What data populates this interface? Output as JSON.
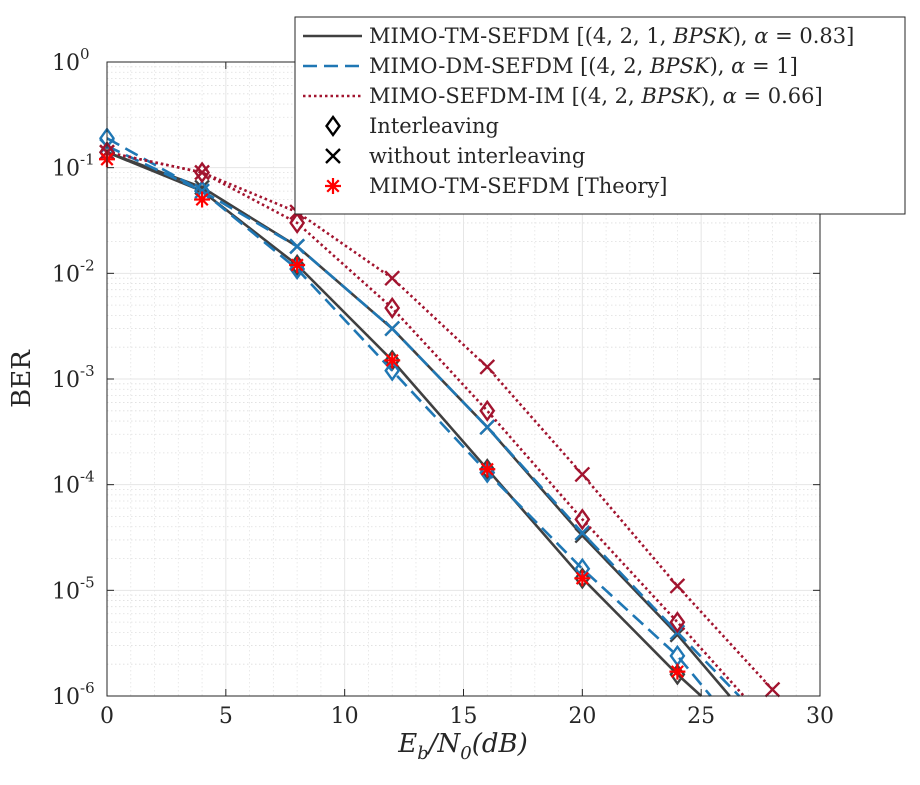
{
  "chart_data": {
    "type": "line",
    "title": "",
    "xlabel": "E_b/N_0(dB)",
    "xlabel_parts": {
      "base": "E",
      "sub1": "b",
      "slash": "/N",
      "sub2": "0",
      "tail": "(dB)"
    },
    "ylabel": "BER",
    "xlim": [
      0,
      30
    ],
    "ylim": [
      1e-06,
      1
    ],
    "yscale": "log",
    "grid": true,
    "legend_position": "top-right",
    "x_ticks": [
      "0",
      "5",
      "10",
      "15",
      "20",
      "25",
      "30"
    ],
    "y_ticks": [
      {
        "base": "10",
        "exp": "0"
      },
      {
        "base": "10",
        "exp": "-1"
      },
      {
        "base": "10",
        "exp": "-2"
      },
      {
        "base": "10",
        "exp": "-3"
      },
      {
        "base": "10",
        "exp": "-4"
      },
      {
        "base": "10",
        "exp": "-5"
      },
      {
        "base": "10",
        "exp": "-6"
      }
    ],
    "series": [
      {
        "name": "TM interleaving",
        "color": "#404040",
        "dash": "solid",
        "marker": "diamond",
        "x": [
          0,
          4,
          8,
          12,
          16,
          20,
          24,
          25
        ],
        "y": [
          0.14,
          0.06,
          0.012,
          0.0015,
          0.00014,
          1.3e-05,
          1.6e-06,
          1e-06
        ]
      },
      {
        "name": "TM without interleaving",
        "color": "#404040",
        "dash": "solid",
        "marker": "x",
        "x": [
          0,
          4,
          8,
          12,
          16,
          20,
          24,
          26.2
        ],
        "y": [
          0.14,
          0.065,
          0.018,
          0.003,
          0.00035,
          3.3e-05,
          3.8e-06,
          1e-06
        ]
      },
      {
        "name": "DM interleaving",
        "color": "#1f77b4",
        "dash": "dashed",
        "marker": "diamond",
        "x": [
          0,
          4,
          8,
          12,
          16,
          20,
          24,
          25.4
        ],
        "y": [
          0.19,
          0.06,
          0.011,
          0.0012,
          0.00013,
          1.6e-05,
          2.4e-06,
          1e-06
        ]
      },
      {
        "name": "DM without interleaving",
        "color": "#1f77b4",
        "dash": "dashed",
        "marker": "x",
        "x": [
          0,
          4,
          8,
          12,
          16,
          20,
          24,
          26.6
        ],
        "y": [
          0.16,
          0.06,
          0.018,
          0.003,
          0.00035,
          3.5e-05,
          4e-06,
          1e-06
        ]
      },
      {
        "name": "IM interleaving",
        "color": "#a2142f",
        "dash": "dotted",
        "marker": "diamond",
        "x": [
          0,
          4,
          8,
          12,
          16,
          20,
          24,
          26.8
        ],
        "y": [
          0.14,
          0.09,
          0.03,
          0.0047,
          0.0005,
          4.7e-05,
          5e-06,
          1e-06
        ]
      },
      {
        "name": "IM without interleaving",
        "color": "#a2142f",
        "dash": "dotted",
        "marker": "x",
        "x": [
          0,
          4,
          8,
          12,
          16,
          20,
          24,
          28
        ],
        "y": [
          0.14,
          0.09,
          0.038,
          0.009,
          0.0013,
          0.000125,
          1.1e-05,
          1.15e-06
        ]
      },
      {
        "name": "MIMO-TM-SEFDM [Theory]",
        "color": "#ff0000",
        "dash": "none",
        "marker": "asterisk",
        "x": [
          0,
          4,
          8,
          12,
          16,
          20,
          24
        ],
        "y": [
          0.12,
          0.05,
          0.012,
          0.0015,
          0.00014,
          1.3e-05,
          1.7e-06
        ]
      }
    ],
    "legend": [
      {
        "kind": "line",
        "color": "#404040",
        "dash": "solid",
        "text": "MIMO-TM-SEFDM [(4, 2, 1, BPSK), α = 0.83]",
        "pre": "MIMO-TM-SEFDM [(4, 2, 1, ",
        "math": "BPSK",
        "mid": "), ",
        "greek": "α",
        "post": " = 0.83]"
      },
      {
        "kind": "line",
        "color": "#1f77b4",
        "dash": "dashed",
        "text": "MIMO-DM-SEFDM [(4, 2, BPSK), α = 1]",
        "pre": "MIMO-DM-SEFDM [(4, 2, ",
        "math": "BPSK",
        "mid": "), ",
        "greek": "α",
        "post": " = 1]"
      },
      {
        "kind": "line",
        "color": "#a2142f",
        "dash": "dotted",
        "text": "MIMO-SEFDM-IM [(4, 2, BPSK), α = 0.66]",
        "pre": "MIMO-SEFDM-IM [(4, 2, ",
        "math": "BPSK",
        "mid": "), ",
        "greek": "α",
        "post": " = 0.66]"
      },
      {
        "kind": "marker",
        "marker": "diamond",
        "color": "#000000",
        "text": "Interleaving"
      },
      {
        "kind": "marker",
        "marker": "x",
        "color": "#000000",
        "text": "without interleaving"
      },
      {
        "kind": "marker",
        "marker": "asterisk",
        "color": "#ff0000",
        "text": "MIMO-TM-SEFDM [Theory]"
      }
    ]
  }
}
